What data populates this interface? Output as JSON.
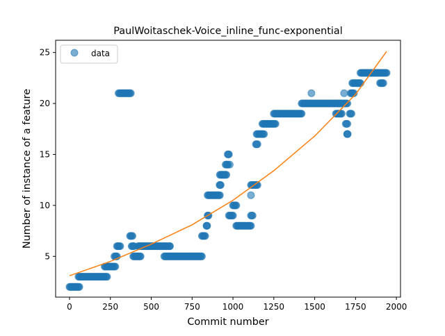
{
  "chart_data": {
    "type": "scatter",
    "title": "PaulWoitaschek-Voice_inline_func-exponential",
    "xlabel": "Commit number",
    "ylabel": "Number of instance of a feature",
    "xlim": [
      -85,
      2025
    ],
    "ylim": [
      1.0,
      26.2
    ],
    "xticks": [
      0,
      250,
      500,
      750,
      1000,
      1250,
      1500,
      1750,
      2000
    ],
    "yticks": [
      5,
      10,
      15,
      20,
      25
    ],
    "grid": false,
    "legend": {
      "position": "top-left",
      "entries": [
        "data"
      ]
    },
    "colors": {
      "data": "#1f77b4",
      "fit": "#ff7f0e"
    },
    "series": [
      {
        "name": "data",
        "kind": "points",
        "segments": [
          {
            "x0": 0,
            "x1": 60,
            "y": 2
          },
          {
            "x0": 55,
            "x1": 230,
            "y": 3
          },
          {
            "x0": 215,
            "x1": 280,
            "y": 4
          },
          {
            "x0": 275,
            "x1": 290,
            "y": 5
          },
          {
            "x0": 290,
            "x1": 310,
            "y": 6
          },
          {
            "x0": 300,
            "x1": 375,
            "y": 21
          },
          {
            "x0": 370,
            "x1": 385,
            "y": 7
          },
          {
            "x0": 380,
            "x1": 395,
            "y": 6
          },
          {
            "x0": 390,
            "x1": 435,
            "y": 5
          },
          {
            "x0": 420,
            "x1": 600,
            "y": 6
          },
          {
            "x0": 610,
            "x1": 615,
            "y": 6
          },
          {
            "x0": 580,
            "x1": 810,
            "y": 5
          },
          {
            "x0": 810,
            "x1": 830,
            "y": 7
          },
          {
            "x0": 838,
            "x1": 842,
            "y": 8
          },
          {
            "x0": 845,
            "x1": 850,
            "y": 9
          },
          {
            "x0": 845,
            "x1": 920,
            "y": 11
          },
          {
            "x0": 918,
            "x1": 925,
            "y": 12
          },
          {
            "x0": 920,
            "x1": 960,
            "y": 13
          },
          {
            "x0": 955,
            "x1": 970,
            "y": 14
          },
          {
            "x0": 968,
            "x1": 975,
            "y": 15
          },
          {
            "x0": 975,
            "x1": 1000,
            "y": 9
          },
          {
            "x0": 1000,
            "x1": 1020,
            "y": 10
          },
          {
            "x0": 1020,
            "x1": 1110,
            "y": 8
          },
          {
            "x0": 1110,
            "x1": 1120,
            "y": 9
          },
          {
            "x0": 1110,
            "x1": 1150,
            "y": 12
          },
          {
            "x0": 1140,
            "x1": 1150,
            "y": 16
          },
          {
            "x0": 1145,
            "x1": 1190,
            "y": 17
          },
          {
            "x0": 1180,
            "x1": 1260,
            "y": 18
          },
          {
            "x0": 1250,
            "x1": 1420,
            "y": 19
          },
          {
            "x0": 1420,
            "x1": 1650,
            "y": 20
          },
          {
            "x0": 1630,
            "x1": 1665,
            "y": 19
          },
          {
            "x0": 1650,
            "x1": 1700,
            "y": 20
          },
          {
            "x0": 1690,
            "x1": 1700,
            "y": 18
          },
          {
            "x0": 1698,
            "x1": 1702,
            "y": 17
          },
          {
            "x0": 1715,
            "x1": 1725,
            "y": 19
          },
          {
            "x0": 1720,
            "x1": 1740,
            "y": 21
          },
          {
            "x0": 1730,
            "x1": 1780,
            "y": 22
          },
          {
            "x0": 1780,
            "x1": 1920,
            "y": 23
          },
          {
            "x0": 1900,
            "x1": 1920,
            "y": 22
          },
          {
            "x0": 1920,
            "x1": 1940,
            "y": 23
          }
        ],
        "single_points": [
          {
            "x": 1110,
            "y": 11
          },
          {
            "x": 1480,
            "y": 21
          },
          {
            "x": 1680,
            "y": 21
          },
          {
            "x": 980,
            "y": 14
          }
        ]
      },
      {
        "name": "fit",
        "kind": "line",
        "x": [
          0,
          250,
          500,
          750,
          1000,
          1250,
          1500,
          1750,
          1940
        ],
        "y": [
          3.1,
          4.5,
          6.2,
          8.1,
          10.5,
          13.4,
          16.8,
          20.9,
          25.1
        ]
      }
    ]
  }
}
